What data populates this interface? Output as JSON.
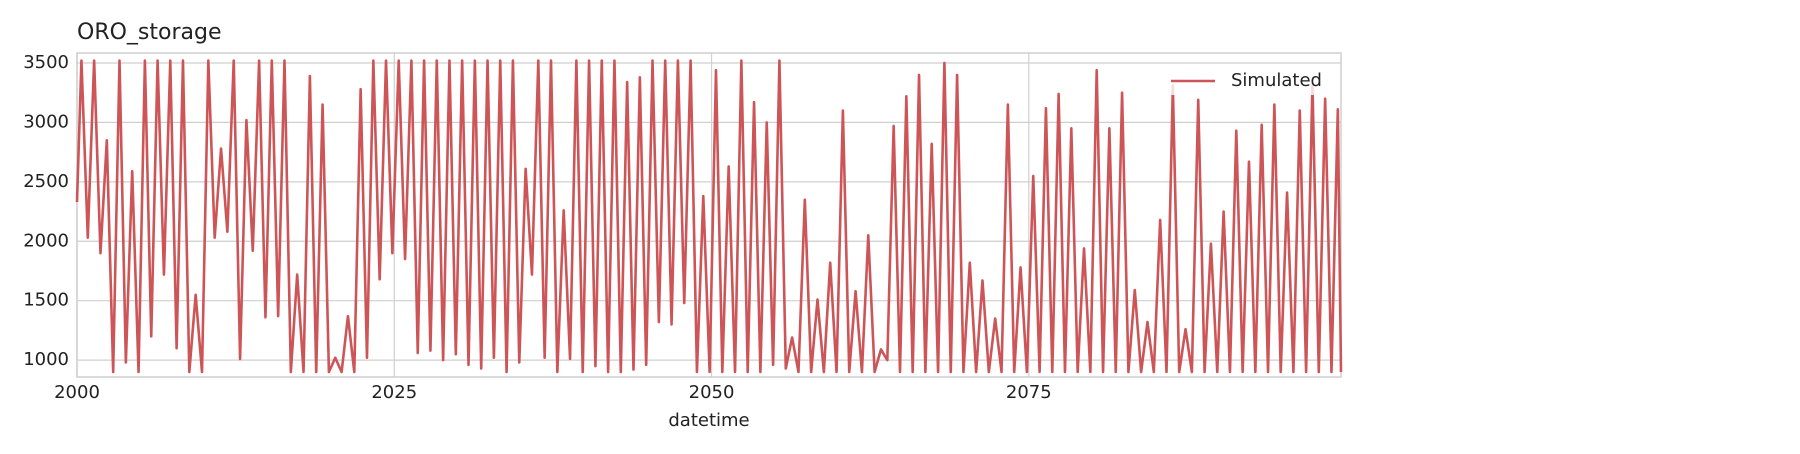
{
  "chart_data": {
    "type": "line",
    "title": "ORO_storage",
    "xlabel": "datetime",
    "x": [
      2000,
      2000.35,
      2000.85,
      2001.35,
      2001.85,
      2002.35,
      2002.85,
      2003.35,
      2003.85,
      2004.35,
      2004.85,
      2005.35,
      2005.85,
      2006.35,
      2006.85,
      2007.35,
      2007.85,
      2008.35,
      2008.85,
      2009.35,
      2009.85,
      2010.35,
      2010.85,
      2011.35,
      2011.85,
      2012.35,
      2012.85,
      2013.35,
      2013.85,
      2014.35,
      2014.85,
      2015.35,
      2015.85,
      2016.35,
      2016.85,
      2017.35,
      2017.85,
      2018.35,
      2018.85,
      2019.35,
      2019.85,
      2020.35,
      2020.85,
      2021.35,
      2021.85,
      2022.35,
      2022.85,
      2023.35,
      2023.85,
      2024.35,
      2024.85,
      2025.35,
      2025.85,
      2026.35,
      2026.85,
      2027.35,
      2027.85,
      2028.35,
      2028.85,
      2029.35,
      2029.85,
      2030.35,
      2030.85,
      2031.35,
      2031.85,
      2032.35,
      2032.85,
      2033.35,
      2033.85,
      2034.35,
      2034.85,
      2035.35,
      2035.85,
      2036.35,
      2036.85,
      2037.35,
      2037.85,
      2038.35,
      2038.85,
      2039.35,
      2039.85,
      2040.35,
      2040.85,
      2041.35,
      2041.85,
      2042.35,
      2042.85,
      2043.35,
      2043.85,
      2044.35,
      2044.85,
      2045.35,
      2045.85,
      2046.35,
      2046.85,
      2047.35,
      2047.85,
      2048.35,
      2048.85,
      2049.35,
      2049.85,
      2050.35,
      2050.85,
      2051.35,
      2051.85,
      2052.35,
      2052.85,
      2053.35,
      2053.85,
      2054.35,
      2054.85,
      2055.35,
      2055.85,
      2056.35,
      2056.85,
      2057.35,
      2057.85,
      2058.35,
      2058.85,
      2059.35,
      2059.85,
      2060.35,
      2060.85,
      2061.35,
      2061.85,
      2062.35,
      2062.85,
      2063.35,
      2063.85,
      2064.35,
      2064.85,
      2065.35,
      2065.85,
      2066.35,
      2066.85,
      2067.35,
      2067.85,
      2068.35,
      2068.85,
      2069.35,
      2069.85,
      2070.35,
      2070.85,
      2071.35,
      2071.85,
      2072.35,
      2072.85,
      2073.35,
      2073.85,
      2074.35,
      2074.85,
      2075.35,
      2075.85,
      2076.35,
      2076.85,
      2077.35,
      2077.85,
      2078.35,
      2078.85,
      2079.35,
      2079.85,
      2080.35,
      2080.85,
      2081.35,
      2081.85,
      2082.35,
      2082.85,
      2083.35,
      2083.85,
      2084.35,
      2084.85,
      2085.35,
      2085.85,
      2086.35,
      2086.85,
      2087.35,
      2087.85,
      2088.35,
      2088.85,
      2089.35,
      2089.85,
      2090.35,
      2090.85,
      2091.35,
      2091.85,
      2092.35,
      2092.85,
      2093.35,
      2093.85,
      2094.35,
      2094.85,
      2095.35,
      2095.85,
      2096.35,
      2096.85,
      2097.35,
      2097.85,
      2098.35,
      2098.85,
      2099.35,
      2099.6
    ],
    "series": [
      {
        "name": "Simulated",
        "color": "#cd5557",
        "values": [
          2330,
          3520,
          2030,
          3520,
          1900,
          2850,
          900,
          3520,
          980,
          2590,
          900,
          3520,
          1200,
          3520,
          1720,
          3520,
          1100,
          3520,
          900,
          1550,
          900,
          3520,
          2030,
          2780,
          2080,
          3520,
          1010,
          3020,
          1920,
          3520,
          1360,
          3520,
          1370,
          3520,
          900,
          1720,
          900,
          3390,
          900,
          3150,
          900,
          1020,
          900,
          1370,
          900,
          3280,
          1020,
          3520,
          1680,
          3520,
          1900,
          3520,
          1850,
          3520,
          1060,
          3520,
          1080,
          3520,
          1000,
          3520,
          1050,
          3520,
          960,
          3520,
          930,
          3520,
          1020,
          3520,
          900,
          3520,
          980,
          2610,
          1720,
          3520,
          1020,
          3520,
          900,
          2260,
          1010,
          3520,
          900,
          3520,
          950,
          3520,
          900,
          3520,
          900,
          3340,
          920,
          3380,
          960,
          3520,
          1320,
          3520,
          1300,
          3520,
          1480,
          3520,
          900,
          2380,
          900,
          3440,
          900,
          2630,
          900,
          3520,
          900,
          3170,
          900,
          3000,
          960,
          3520,
          930,
          1190,
          900,
          2350,
          900,
          1510,
          900,
          1820,
          900,
          3100,
          900,
          1580,
          900,
          2050,
          900,
          1090,
          1000,
          2970,
          900,
          3220,
          900,
          3400,
          900,
          2820,
          900,
          3500,
          900,
          3400,
          900,
          1820,
          900,
          1670,
          900,
          1350,
          900,
          3150,
          900,
          1780,
          900,
          2550,
          900,
          3120,
          900,
          3240,
          900,
          2950,
          900,
          1940,
          900,
          3440,
          900,
          2950,
          900,
          3250,
          900,
          1590,
          900,
          1320,
          900,
          2180,
          900,
          3310,
          900,
          1260,
          900,
          3190,
          900,
          1980,
          900,
          2250,
          900,
          2930,
          900,
          2670,
          900,
          2980,
          900,
          3150,
          900,
          2410,
          900,
          3100,
          900,
          3320,
          900,
          3200,
          900,
          3110,
          900
        ]
      }
    ],
    "xlim": [
      2000,
      2099.6
    ],
    "ylim": [
      858,
      3584
    ],
    "xticks": [
      2000,
      2025,
      2050,
      2075
    ],
    "yticks": [
      1000,
      1500,
      2000,
      2500,
      3000,
      3500
    ],
    "grid": true,
    "legend": "upper right"
  }
}
